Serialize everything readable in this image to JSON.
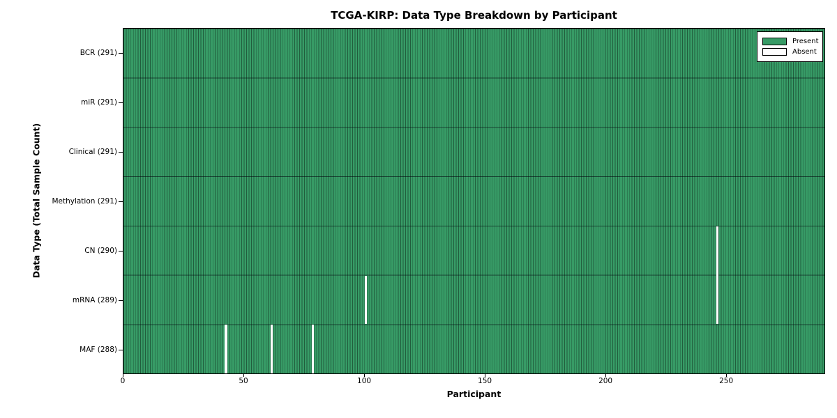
{
  "chart_data": {
    "type": "heatmap",
    "title": "TCGA-KIRP: Data Type Breakdown by Participant",
    "xlabel": "Participant",
    "ylabel": "Data Type (Total Sample Count)",
    "x_ticks": [
      0,
      50,
      100,
      150,
      200,
      250
    ],
    "xlim": [
      0,
      291
    ],
    "n_participants": 291,
    "rows": [
      {
        "label": "BCR (291)",
        "data_type": "BCR",
        "present_count": 291,
        "absent_participants": []
      },
      {
        "label": "miR (291)",
        "data_type": "miR",
        "present_count": 291,
        "absent_participants": []
      },
      {
        "label": "Clinical (291)",
        "data_type": "Clinical",
        "present_count": 291,
        "absent_participants": []
      },
      {
        "label": "Methylation (291)",
        "data_type": "Methylation",
        "present_count": 291,
        "absent_participants": []
      },
      {
        "label": "CN (290)",
        "data_type": "CN",
        "present_count": 290,
        "absent_participants": [
          246
        ]
      },
      {
        "label": "mRNA (289)",
        "data_type": "mRNA",
        "present_count": 289,
        "absent_participants": [
          100,
          246
        ]
      },
      {
        "label": "MAF (288)",
        "data_type": "MAF",
        "present_count": 288,
        "absent_participants": [
          42,
          61,
          78
        ]
      }
    ],
    "legend": {
      "position": "upper right",
      "items": [
        {
          "label": "Present",
          "color": "#379b66"
        },
        {
          "label": "Absent",
          "color": "#ffffff"
        }
      ]
    },
    "colors": {
      "present": "#379b66",
      "absent": "#ffffff",
      "bar_edge": "rgba(0,0,0,0.4)",
      "axis": "#000000",
      "background": "#ffffff"
    },
    "grid": false
  }
}
